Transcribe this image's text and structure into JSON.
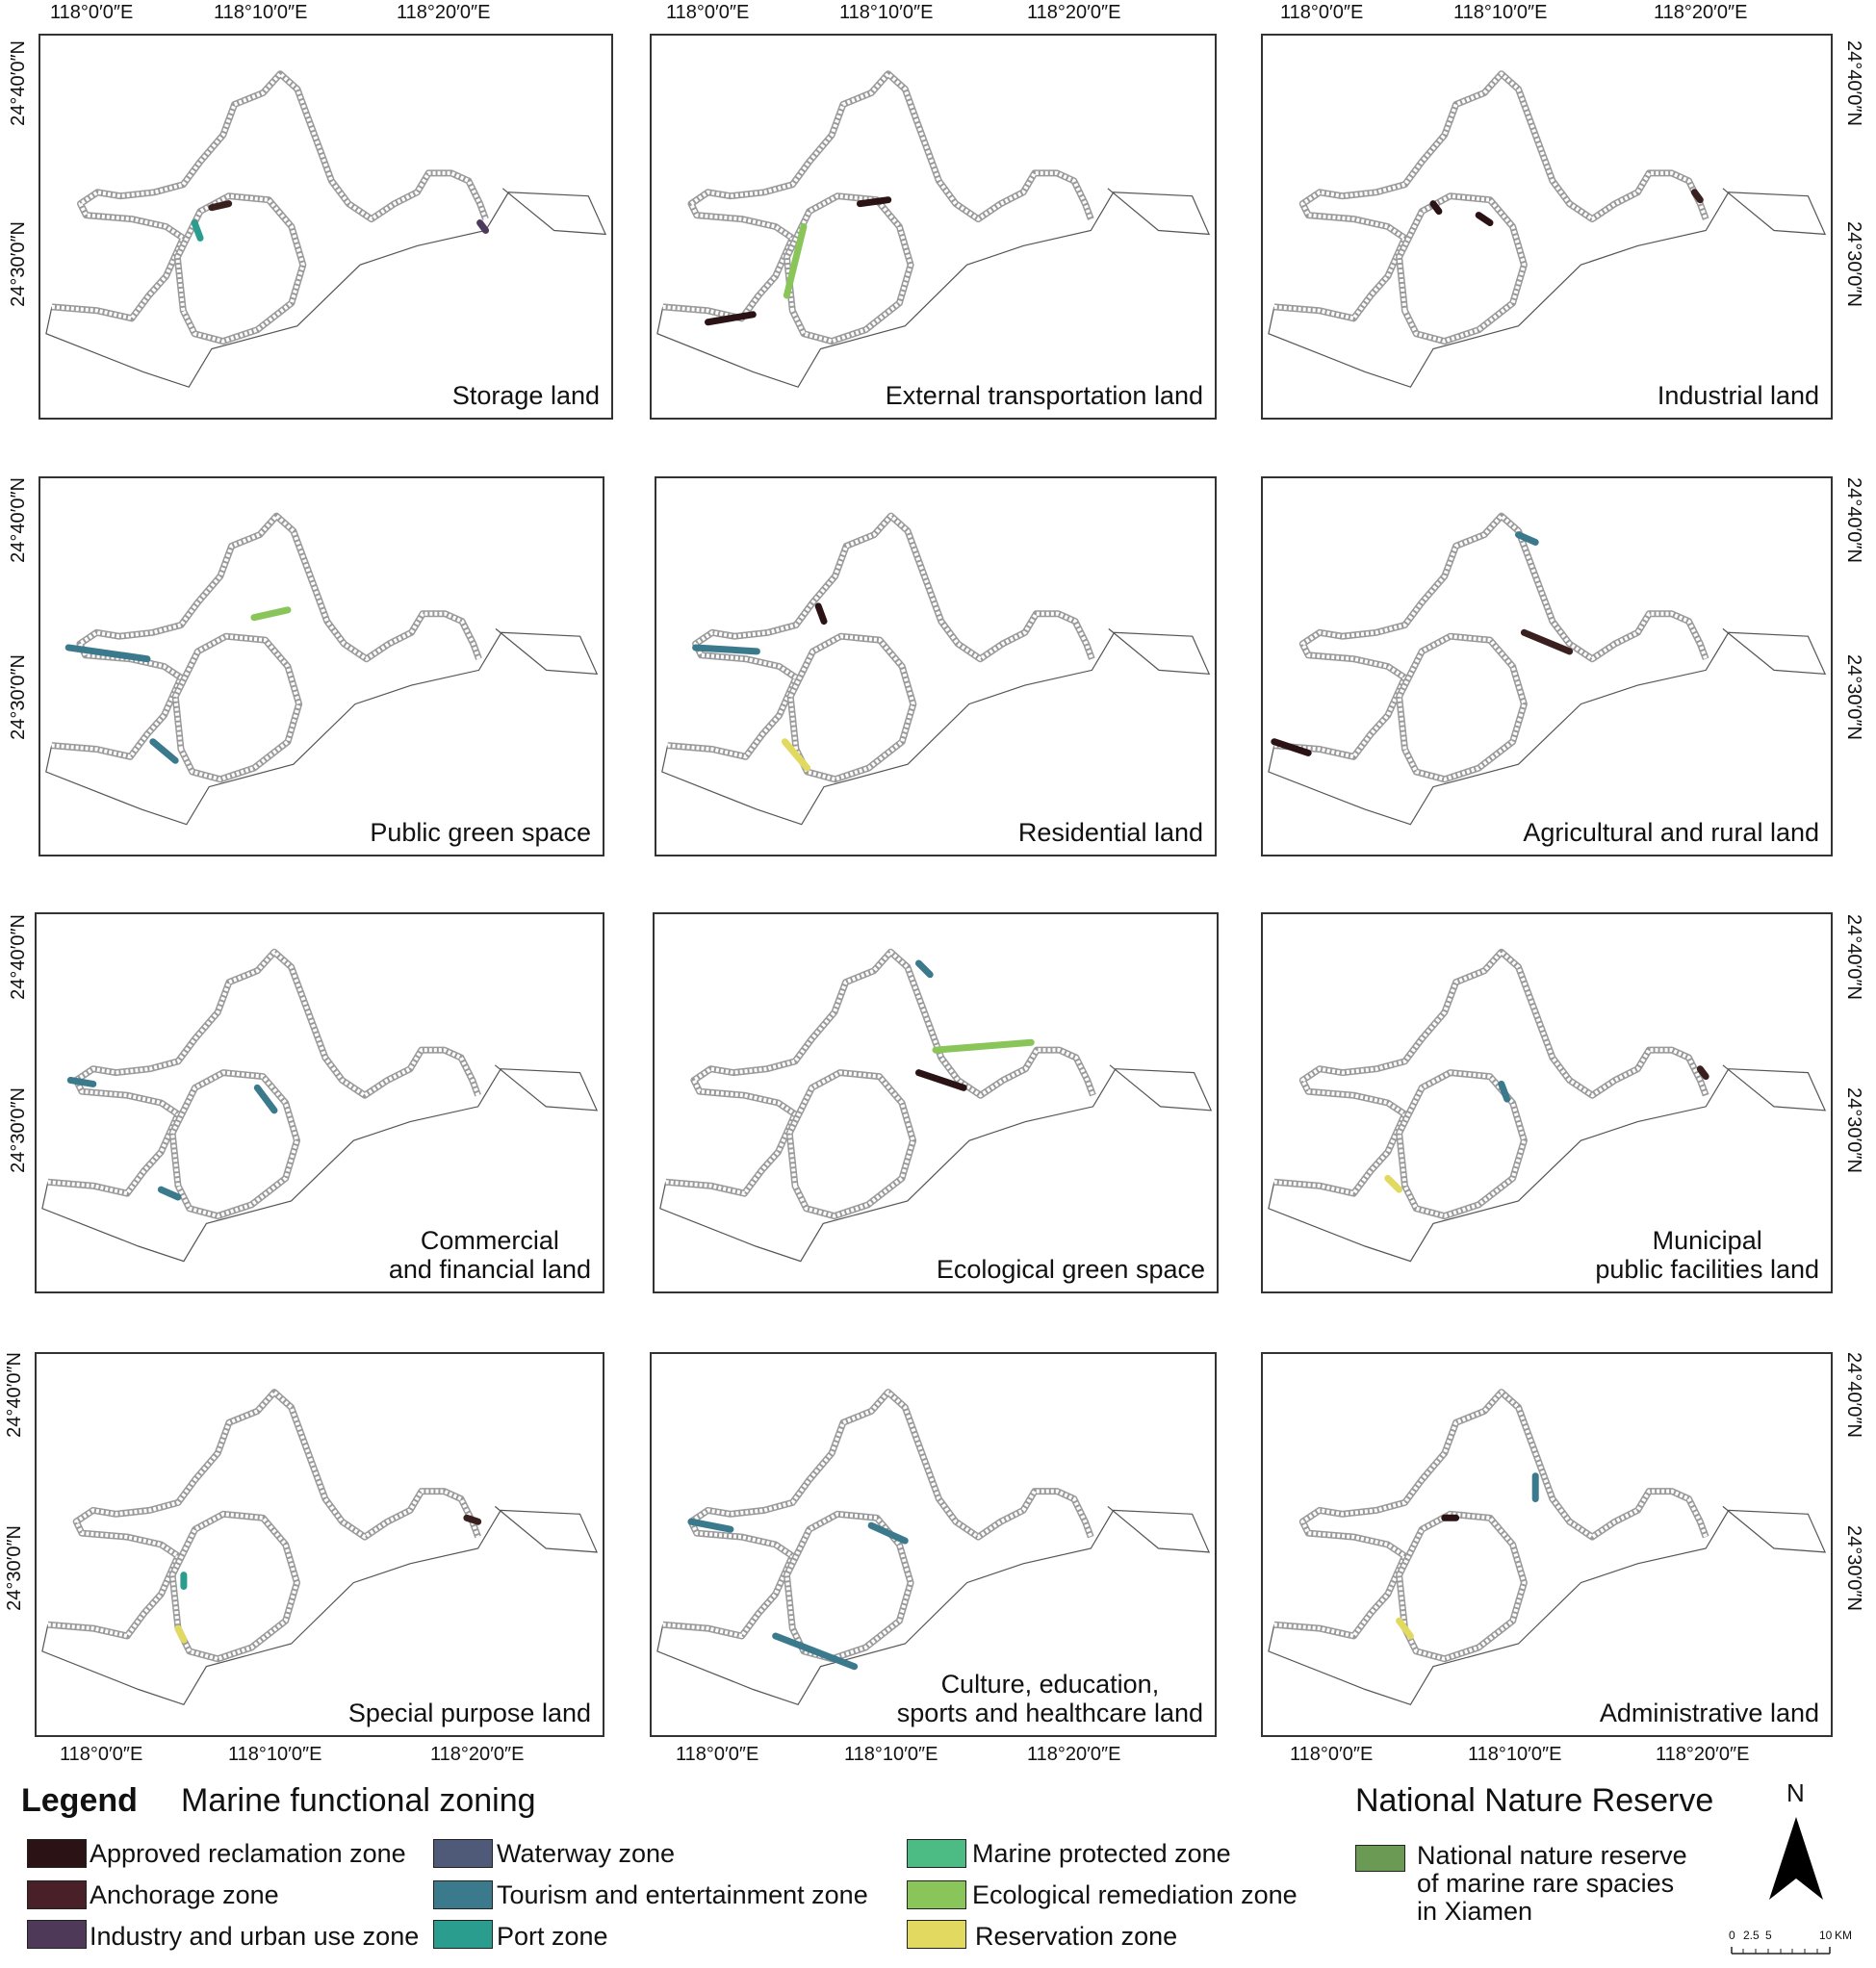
{
  "coords": {
    "lon": [
      "118°0′0″E",
      "118°10′0″E",
      "118°20′0″E"
    ],
    "lat": [
      "24°40′0″N",
      "24°30′0″N"
    ]
  },
  "panels": [
    {
      "title": "Storage land",
      "segs": [
        [
          "0.30,0.45,0.33,0.44",
          "#3a1f1f"
        ],
        [
          "0.27,0.49,0.28,0.53",
          "#2a9d8f"
        ],
        [
          "0.77,0.49,0.78,0.51",
          "#4d3a5c"
        ]
      ]
    },
    {
      "title": "External transportation land",
      "segs": [
        [
          "0.37,0.44,0.42,0.43",
          "#2a1215"
        ],
        [
          "0.27,0.50,0.24,0.68",
          "#8ac55a"
        ],
        [
          "0.10,0.75,0.18,0.73",
          "#2a1215"
        ]
      ]
    },
    {
      "title": "Industrial land",
      "segs": [
        [
          "0.30,0.44,0.31,0.46",
          "#2a1215"
        ],
        [
          "0.38,0.47,0.40,0.49",
          "#2a1215"
        ],
        [
          "0.76,0.41,0.77,0.43",
          "#3a1f1f"
        ]
      ]
    },
    {
      "title": "Public green space",
      "segs": [
        [
          "0.05,0.45,0.19,0.48",
          "#3a7a8c"
        ],
        [
          "0.38,0.37,0.44,0.35",
          "#8ac55a"
        ],
        [
          "0.20,0.70,0.24,0.75",
          "#3a7a8c"
        ]
      ]
    },
    {
      "title": "Residential land",
      "segs": [
        [
          "0.07,0.45,0.18,0.46",
          "#3a7a8c"
        ],
        [
          "0.29,0.34,0.30,0.38",
          "#2a1215"
        ],
        [
          "0.23,0.70,0.27,0.77",
          "#e2d960"
        ]
      ]
    },
    {
      "title": "Agricultural and rural land",
      "segs": [
        [
          "0.02,0.70,0.08,0.73",
          "#2a1215"
        ],
        [
          "0.46,0.41,0.54,0.46",
          "#3a1f1f"
        ],
        [
          "0.45,0.15,0.48,0.17",
          "#3a7a8c"
        ]
      ]
    },
    {
      "title": "Commercial\nand financial land",
      "segs": [
        [
          "0.06,0.44,0.10,0.45",
          "#3a7a8c"
        ],
        [
          "0.22,0.73,0.25,0.75",
          "#3a7a8c"
        ],
        [
          "0.39,0.46,0.42,0.52",
          "#3a7a8c"
        ]
      ]
    },
    {
      "title": "Ecological green space",
      "segs": [
        [
          "0.50,0.36,0.67,0.34",
          "#8ac55a"
        ],
        [
          "0.47,0.42,0.55,0.46",
          "#2a1215"
        ],
        [
          "0.47,0.13,0.49,0.16",
          "#3a7a8c"
        ]
      ]
    },
    {
      "title": "Municipal\npublic facilities land",
      "segs": [
        [
          "0.42,0.45,0.43,0.49",
          "#3a7a8c"
        ],
        [
          "0.77,0.41,0.78,0.43",
          "#3a1f1f"
        ],
        [
          "0.22,0.70,0.24,0.73",
          "#e2d960"
        ]
      ]
    },
    {
      "title": "Special purpose land",
      "segs": [
        [
          "0.26,0.58,0.26,0.61",
          "#2a9d8f"
        ],
        [
          "0.25,0.72,0.26,0.75",
          "#e2d960"
        ],
        [
          "0.76,0.43,0.78,0.44",
          "#3a1f1f"
        ]
      ]
    },
    {
      "title": "Culture, education,\nsports and healthcare land",
      "segs": [
        [
          "0.22,0.74,0.36,0.82",
          "#3a7a8c"
        ],
        [
          "0.07,0.44,0.14,0.46",
          "#3a7a8c"
        ],
        [
          "0.39,0.45,0.45,0.49",
          "#3a7a8c"
        ]
      ]
    },
    {
      "title": "Administrative land",
      "segs": [
        [
          "0.48,0.32,0.48,0.38",
          "#3a7a8c"
        ],
        [
          "0.32,0.43,0.34,0.43",
          "#2a1215"
        ],
        [
          "0.24,0.70,0.26,0.74",
          "#e2d960"
        ]
      ]
    }
  ],
  "legend": {
    "title": "Legend",
    "marine_heading": "Marine functional zoning",
    "reserve_heading": "National Nature Reserve",
    "items": [
      {
        "label": "Approved reclamation zone",
        "color": "#2a1215"
      },
      {
        "label": "Anchorage zone",
        "color": "#4a2028"
      },
      {
        "label": "Industry and urban use zone",
        "color": "#4e3a58"
      },
      {
        "label": "Waterway zone",
        "color": "#4f5a78"
      },
      {
        "label": "Tourism and entertainment zone",
        "color": "#3a7a8c"
      },
      {
        "label": "Port zone",
        "color": "#2a9d8f"
      },
      {
        "label": "Marine protected zone",
        "color": "#4dbb84"
      },
      {
        "label": "Ecological remediation zone",
        "color": "#8ac55a"
      },
      {
        "label": "Reservation zone",
        "color": "#e2d960"
      }
    ],
    "reserve_item": {
      "label": "National nature reserve\nof marine rare spacies\nin Xiamen",
      "color": "#6b9a55"
    }
  },
  "north": "N",
  "scale": {
    "ticks": [
      "0",
      "2.5",
      "5",
      "10"
    ],
    "unit": "KM"
  }
}
